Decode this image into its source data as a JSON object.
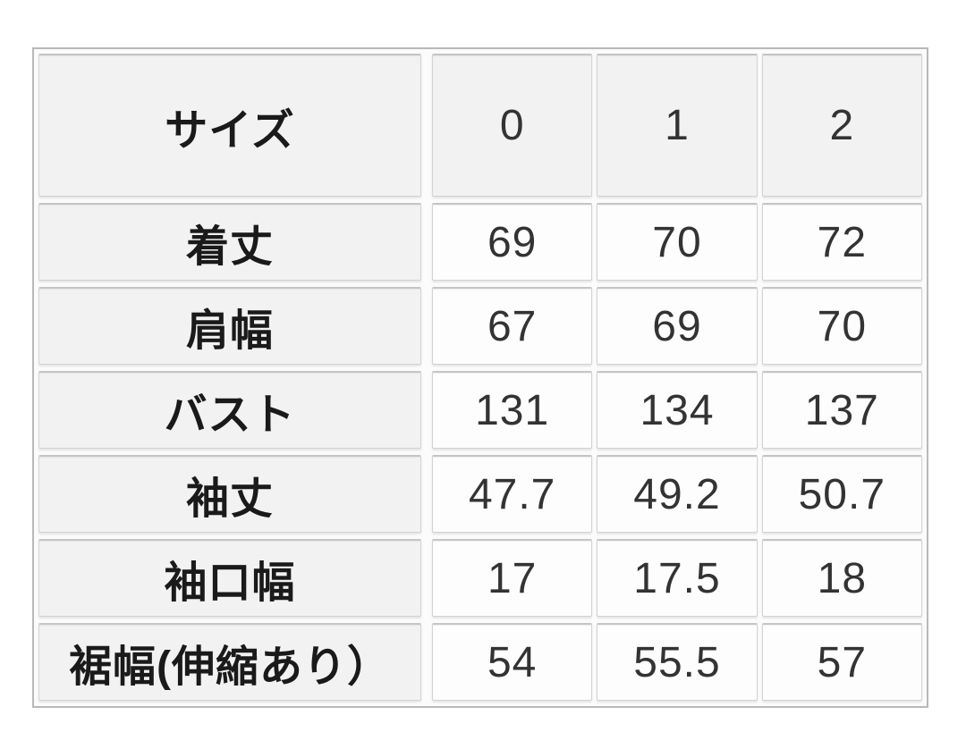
{
  "page": {
    "background": "#ffffff"
  },
  "colors": {
    "table_outer_border": "#b9b9b9",
    "cell_border": "#d3d3d3",
    "header_cell_bg": "#f2f2f2",
    "data_cell_bg": "#fdfdfd",
    "label_text": "#1a1a1a",
    "value_text": "#333333"
  },
  "chart_data": {
    "type": "table",
    "columns": [
      "サイズ",
      "0",
      "1",
      "2"
    ],
    "rows": [
      [
        "着丈",
        "69",
        "70",
        "72"
      ],
      [
        "肩幅",
        "67",
        "69",
        "70"
      ],
      [
        "バスト",
        "131",
        "134",
        "137"
      ],
      [
        "袖丈",
        "47.7",
        "49.2",
        "50.7"
      ],
      [
        "袖口幅",
        "17",
        "17.5",
        "18"
      ],
      [
        "裾幅(伸縮あり）",
        "54",
        "55.5",
        "57"
      ]
    ]
  }
}
